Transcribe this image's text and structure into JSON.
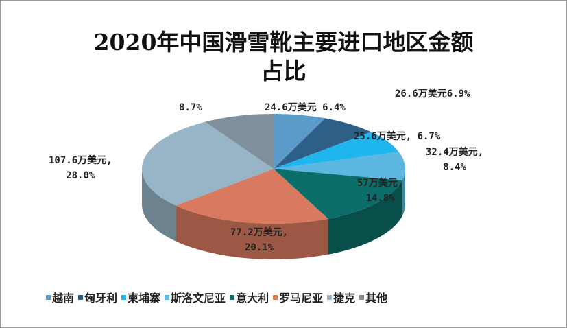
{
  "chart_data": {
    "type": "pie",
    "title": "2020年中国滑雪靴主要进口地区金额占比",
    "title_lines": [
      "2020年中国滑雪靴主要进口地区金额",
      "占比"
    ],
    "style": "3d",
    "legend_position": "bottom",
    "unit": "万美元",
    "slices": [
      {
        "name": "越南",
        "value": 24.6,
        "percent": 6.4,
        "label": "24.6万美元 6.4%",
        "color": "#5b9bc9"
      },
      {
        "name": "匈牙利",
        "value": 26.6,
        "percent": 6.9,
        "label": "26.6万美元6.9%",
        "color": "#2e5f86"
      },
      {
        "name": "柬埔寨",
        "value": 25.6,
        "percent": 6.7,
        "label": "25.6万美元, 6.7%",
        "color": "#1fb5ef"
      },
      {
        "name": "斯洛文尼亚",
        "value": 32.4,
        "percent": 8.4,
        "label": "32.4万美元,\n8.4%",
        "color": "#5cb7e0"
      },
      {
        "name": "意大利",
        "value": 57,
        "percent": 14.8,
        "label": "57万美元,\n14.8%",
        "color": "#0b6e69"
      },
      {
        "name": "罗马尼亚",
        "value": 77.2,
        "percent": 20.1,
        "label": "77.2万美元,\n20.1%",
        "color": "#d97a60"
      },
      {
        "name": "捷克",
        "value": 107.6,
        "percent": 28.0,
        "label": "107.6万美元,\n28.0%",
        "color": "#97b5c6"
      },
      {
        "name": "其他",
        "value": null,
        "percent": 8.7,
        "label": "8.7%",
        "color": "#7f8f9c"
      }
    ]
  }
}
